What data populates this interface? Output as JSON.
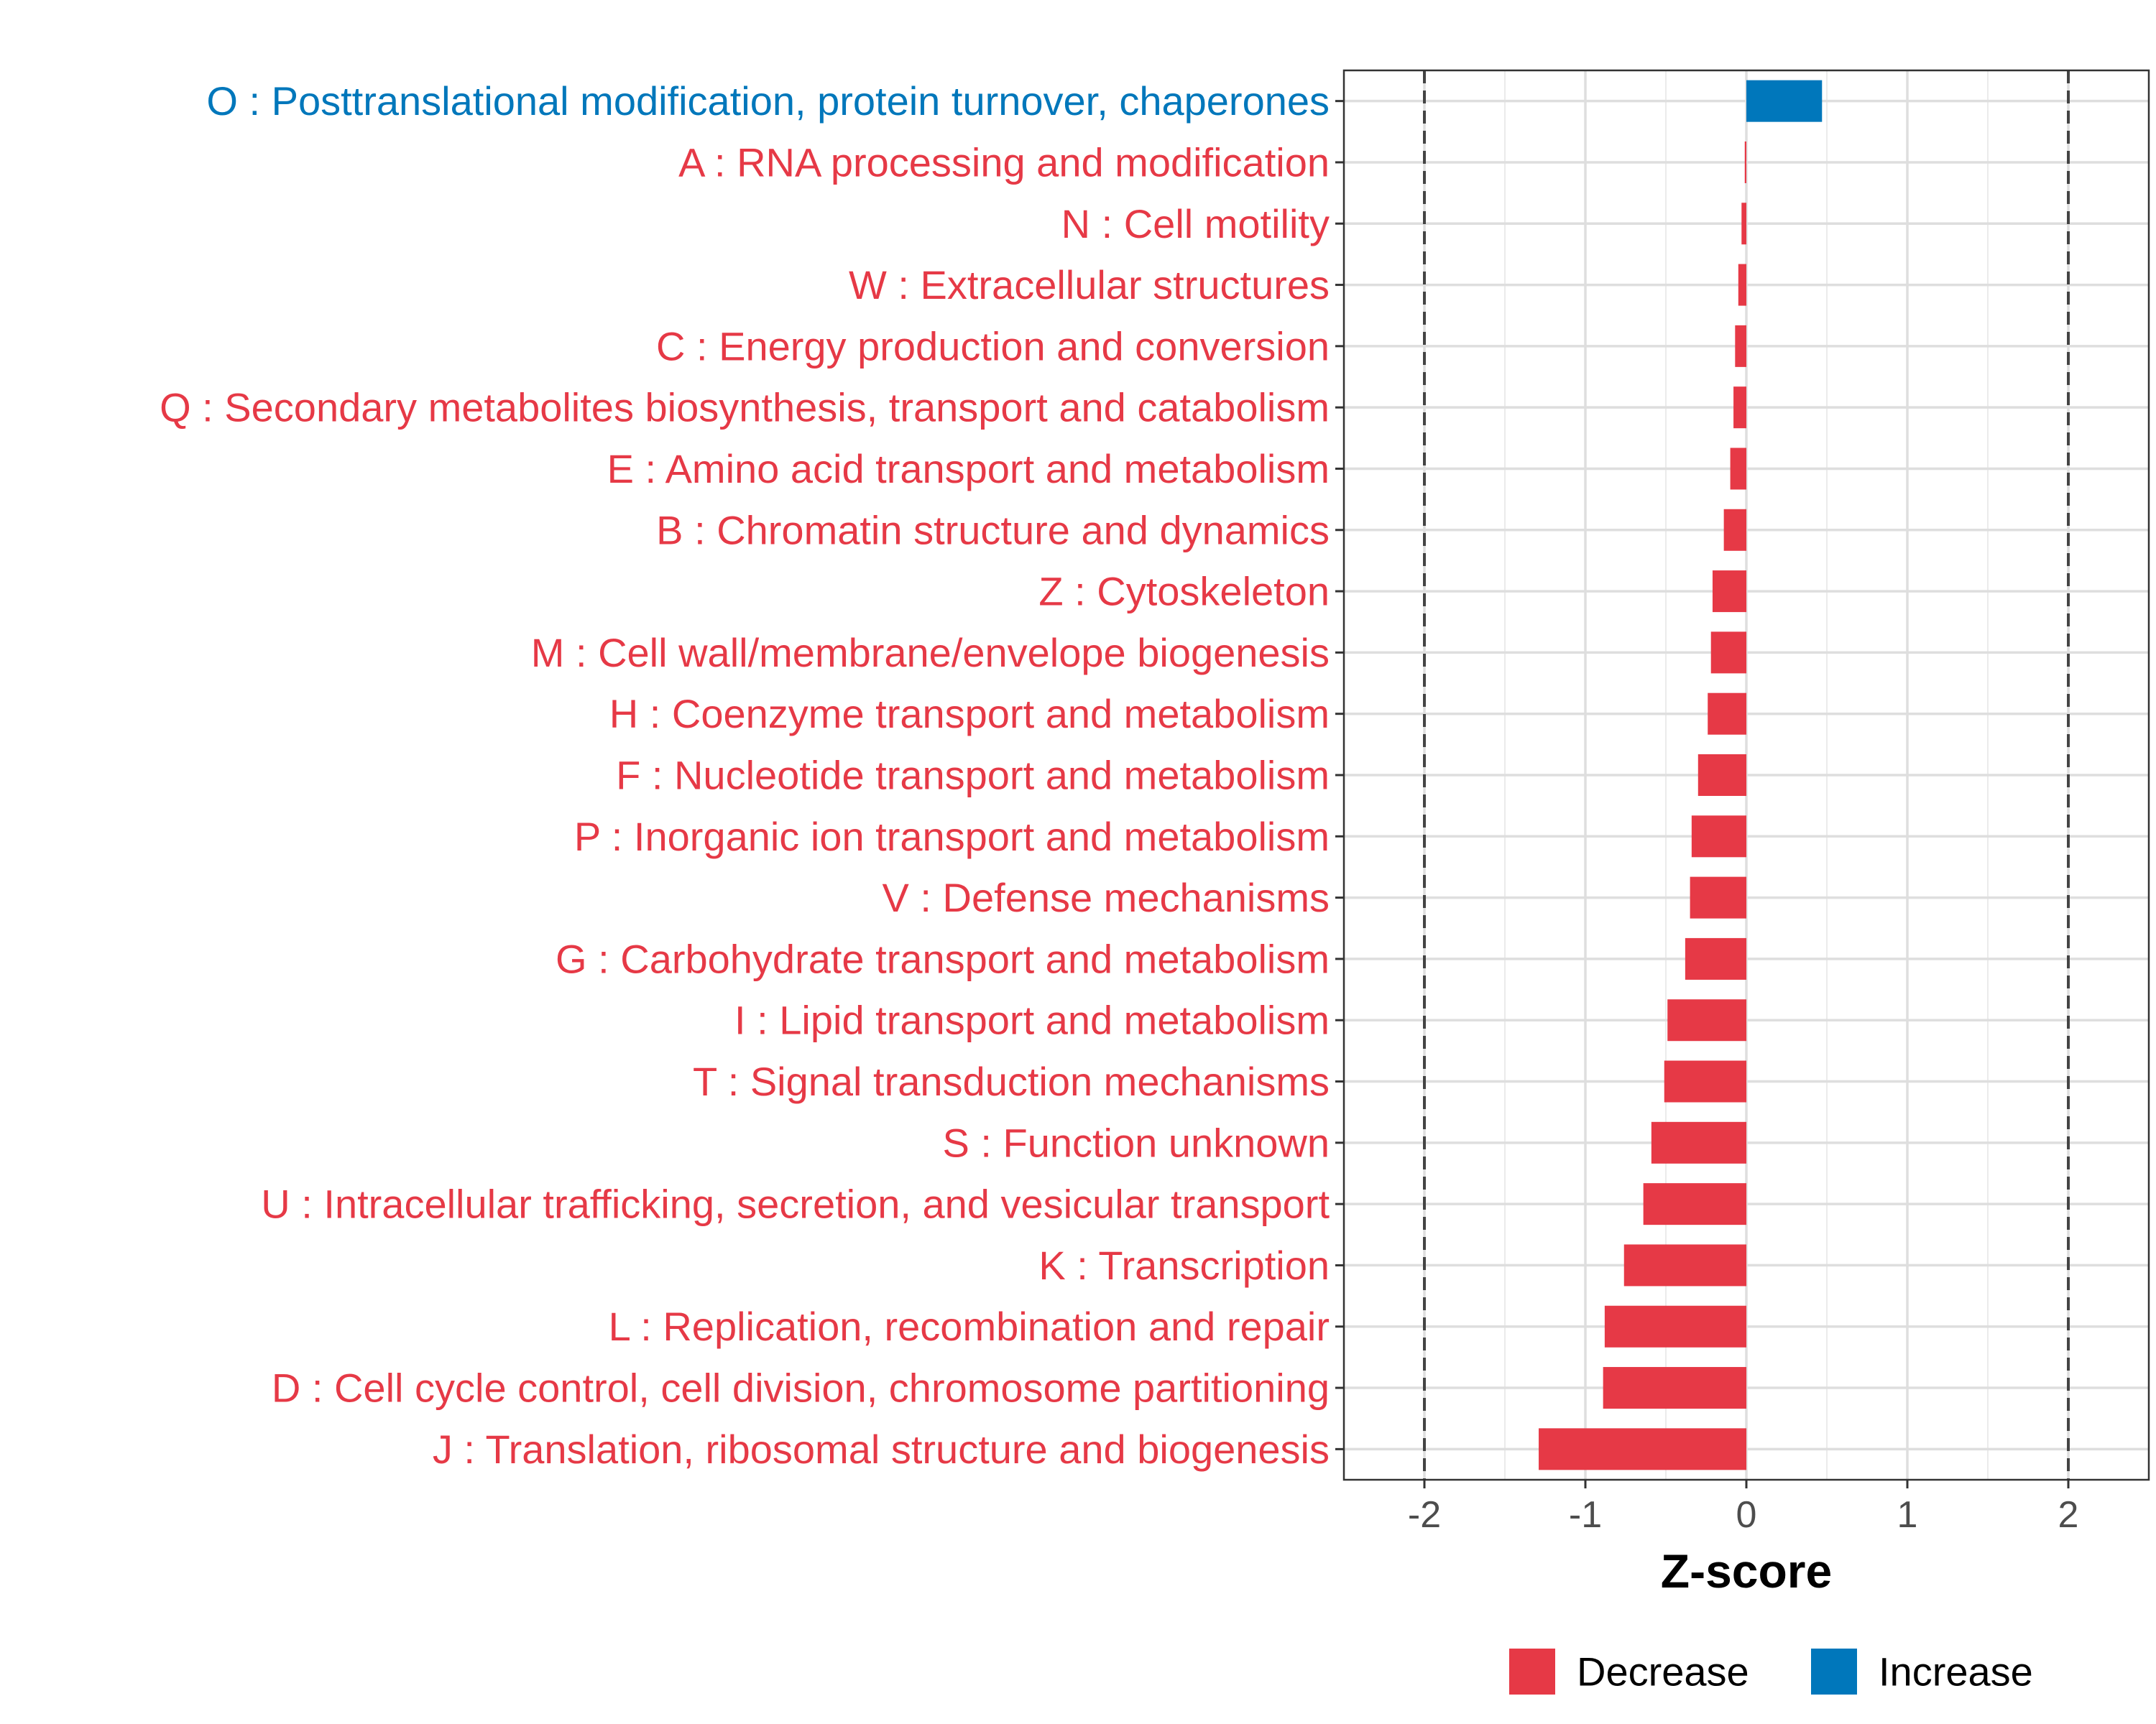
{
  "chart_data": {
    "type": "bar",
    "orientation": "horizontal",
    "xlabel": "Z-score",
    "xlim": [
      -2.5,
      2.5
    ],
    "x_ticks": [
      -2,
      -1,
      0,
      1,
      2
    ],
    "x_tick_labels": [
      "-2",
      "-1",
      "0",
      "1",
      "2"
    ],
    "reference_lines": [
      -2,
      2
    ],
    "grid": true,
    "categories": [
      "O : Posttranslational modification, protein turnover, chaperones",
      "A : RNA processing and modification",
      "N : Cell motility",
      "W : Extracellular structures",
      "C : Energy production and conversion",
      "Q : Secondary metabolites biosynthesis, transport and catabolism",
      "E : Amino acid transport and metabolism",
      "B : Chromatin structure and dynamics",
      "Z : Cytoskeleton",
      "M : Cell wall/membrane/envelope biogenesis",
      "H : Coenzyme transport and metabolism",
      "F : Nucleotide transport and metabolism",
      "P : Inorganic ion transport and metabolism",
      "V : Defense mechanisms",
      "G : Carbohydrate transport and metabolism",
      "I : Lipid transport and metabolism",
      "T : Signal transduction mechanisms",
      "S : Function unknown",
      "U : Intracellular trafficking, secretion, and vesicular transport",
      "K : Transcription",
      "L : Replication, recombination and repair",
      "D : Cell cycle control, cell division, chromosome partitioning",
      "J : Translation, ribosomal structure and biogenesis"
    ],
    "values": [
      0.47,
      -0.01,
      -0.03,
      -0.05,
      -0.07,
      -0.08,
      -0.1,
      -0.14,
      -0.21,
      -0.22,
      -0.24,
      -0.3,
      -0.34,
      -0.35,
      -0.38,
      -0.49,
      -0.51,
      -0.59,
      -0.64,
      -0.76,
      -0.88,
      -0.89,
      -1.29
    ],
    "groups": [
      "Increase",
      "Decrease",
      "Decrease",
      "Decrease",
      "Decrease",
      "Decrease",
      "Decrease",
      "Decrease",
      "Decrease",
      "Decrease",
      "Decrease",
      "Decrease",
      "Decrease",
      "Decrease",
      "Decrease",
      "Decrease",
      "Decrease",
      "Decrease",
      "Decrease",
      "Decrease",
      "Decrease",
      "Decrease",
      "Decrease"
    ],
    "legend": [
      {
        "label": "Decrease",
        "color": "#E63946"
      },
      {
        "label": "Increase",
        "color": "#0077BB"
      }
    ],
    "legend_position": "bottom",
    "colors": {
      "Decrease": "#E63946",
      "Increase": "#0077BB"
    }
  }
}
